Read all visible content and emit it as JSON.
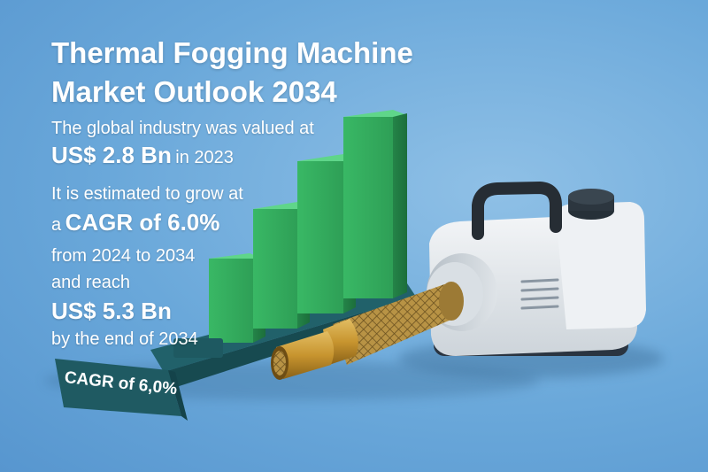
{
  "title": {
    "line1": "Thermal Fogging Machine",
    "line2": "Market Outlook 2034"
  },
  "stats": {
    "valued_text": "The global industry was valued at",
    "value_2023_amount": "US$ 2.8 Bn",
    "value_2023_suffix": "in 2023",
    "grow_text": "It is estimated to grow at",
    "cagr_prefix": "a",
    "cagr_value": "CAGR of 6.0%",
    "period_text": "from 2024 to 2034",
    "reach_text": "and reach",
    "value_2034_amount": "US$ 5.3 Bn",
    "end_text": "by the end of 2034"
  },
  "base_label": "CAGR of 6,0%",
  "bars": {
    "count_relative_heights": [
      0.38,
      0.58,
      0.82,
      1.0
    ]
  },
  "colors": {
    "background": "#6aa8da",
    "bar_green": "#3dbf6a",
    "base_teal": "#1f5a62",
    "machine_body": "#e6eaee",
    "nozzle_gold": "#c89a3a"
  },
  "icons": [
    "fogging-machine-illustration",
    "bar-chart-illustration"
  ]
}
